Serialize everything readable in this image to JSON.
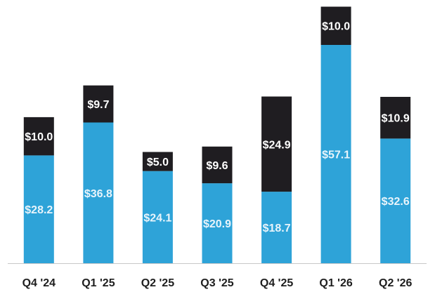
{
  "chart_data": {
    "type": "bar",
    "stacked": true,
    "categories": [
      "Q4 '24",
      "Q1 '25",
      "Q2 '25",
      "Q3 '25",
      "Q4 '25",
      "Q1 '26",
      "Q2 '26"
    ],
    "series": [
      {
        "values": [
          28.2,
          36.8,
          24.1,
          20.9,
          18.7,
          57.1,
          32.6
        ],
        "labels": [
          "$28.2",
          "$36.8",
          "$24.1",
          "$20.9",
          "$18.7",
          "$57.1",
          "$32.6"
        ],
        "color": "#2ea3d8"
      },
      {
        "values": [
          10.0,
          9.7,
          5.0,
          9.6,
          24.9,
          10.0,
          10.9
        ],
        "labels": [
          "$10.0",
          "$9.7",
          "$5.0",
          "$9.6",
          "$24.9",
          "$10.0",
          "$10.9"
        ],
        "color": "#1f1d21"
      }
    ],
    "title": "",
    "xlabel": "",
    "ylabel": "",
    "ylim": [
      0,
      67
    ],
    "grid": false,
    "legend": "none",
    "axis_line_color": "#c8c8c8"
  }
}
